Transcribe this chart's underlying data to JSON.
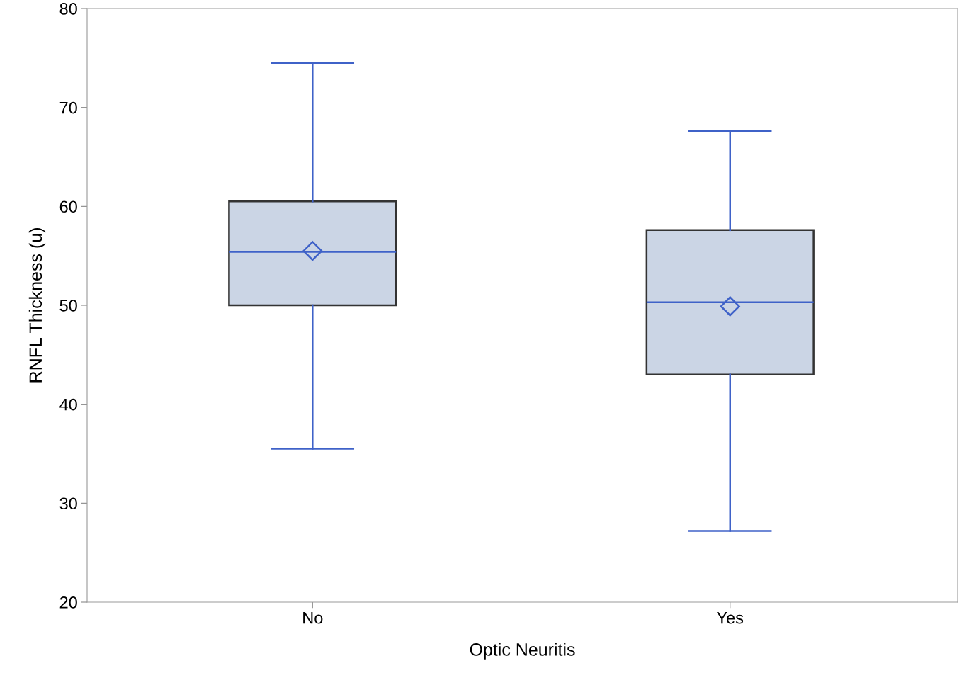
{
  "chart_data": {
    "type": "box",
    "xlabel": "Optic Neuritis",
    "ylabel": "RNFL Thickness (u)",
    "categories": [
      "No",
      "Yes"
    ],
    "series": [
      {
        "color": "#3f62c8",
        "colors": [
          "#cbd5e5",
          "#cbd5e5"
        ],
        "marker": "diamond",
        "boxes": [
          {
            "low": 35.5,
            "q1": 50.0,
            "median": 55.4,
            "q3": 60.5,
            "high": 74.5,
            "mean": 55.5
          },
          {
            "low": 27.2,
            "q1": 43.0,
            "median": 50.3,
            "q3": 57.6,
            "high": 67.6,
            "mean": 49.9
          }
        ]
      }
    ],
    "ylim": [
      20,
      80
    ],
    "yticks": [
      20,
      30,
      40,
      50,
      60,
      70,
      80
    ],
    "grid": false,
    "legend": false
  }
}
